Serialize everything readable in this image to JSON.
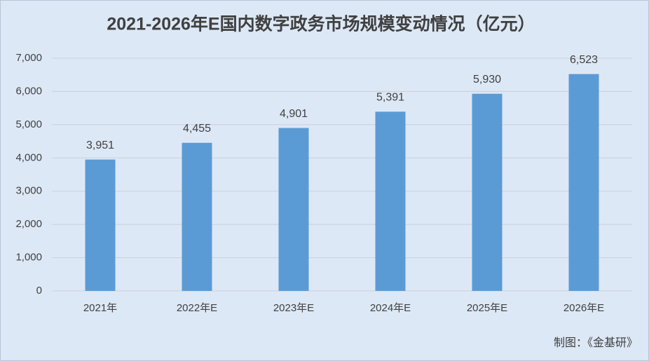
{
  "chart_data": {
    "type": "bar",
    "title": "2021-2026年E国内数字政务市场规模变动情况（亿元）",
    "categories": [
      "2021年",
      "2022年E",
      "2023年E",
      "2024年E",
      "2025年E",
      "2026年E"
    ],
    "values": [
      3951,
      4455,
      4901,
      5391,
      5930,
      6523
    ],
    "value_labels": [
      "3,951",
      "4,455",
      "4,901",
      "5,391",
      "5,930",
      "6,523"
    ],
    "color": "#5b9bd5",
    "ylim": [
      0,
      7000
    ],
    "yticks": [
      0,
      {
        "value": 1000,
        "label": "1,000"
      },
      {
        "value": 2000,
        "label": "2,000"
      },
      {
        "value": 3000,
        "label": "3,000"
      },
      {
        "value": 4000,
        "label": "4,000"
      },
      {
        "value": 5000,
        "label": "5,000"
      },
      {
        "value": 6000,
        "label": "6,000"
      },
      {
        "value": 7000,
        "label": "7,000"
      }
    ],
    "grid": true,
    "source": "制图：《金基研》"
  }
}
